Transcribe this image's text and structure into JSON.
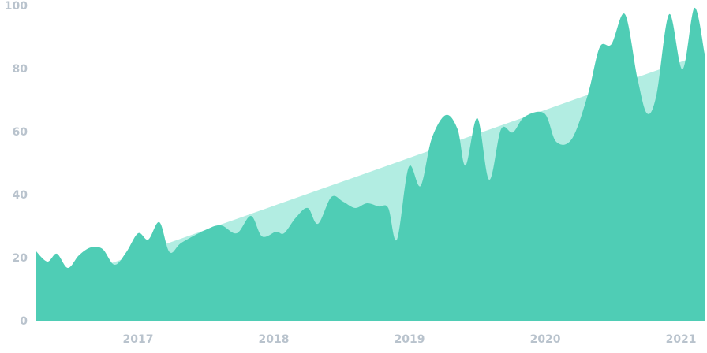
{
  "chart_data": {
    "type": "area",
    "xlim": [
      2016.244,
      2021.174
    ],
    "xticks": [
      2017,
      2018,
      2019,
      2020,
      2021
    ],
    "ylim": [
      0,
      100
    ],
    "yticks": [
      0,
      20,
      40,
      60,
      80,
      100
    ],
    "grid": false,
    "series": [
      {
        "color": "#b2ede2",
        "x": [
          2016.244,
          2021.174
        ],
        "values": [
          10,
          85
        ]
      },
      {
        "color": "#4fcdb5",
        "x": [
          2016.244,
          2016.331,
          2016.401,
          2016.482,
          2016.564,
          2016.651,
          2016.738,
          2016.826,
          2016.913,
          2017.0,
          2017.075,
          2017.157,
          2017.232,
          2017.32,
          2017.494,
          2017.61,
          2017.727,
          2017.831,
          2017.913,
          2018.017,
          2018.075,
          2018.163,
          2018.25,
          2018.325,
          2018.424,
          2018.511,
          2018.599,
          2018.686,
          2018.773,
          2018.843,
          2018.907,
          2018.994,
          2019.081,
          2019.163,
          2019.267,
          2019.354,
          2019.413,
          2019.5,
          2019.587,
          2019.674,
          2019.761,
          2019.849,
          2019.994,
          2020.081,
          2020.197,
          2020.314,
          2020.401,
          2020.488,
          2020.587,
          2020.68,
          2020.75,
          2020.82,
          2020.913,
          2021.011,
          2021.099,
          2021.174
        ],
        "values": [
          22.5,
          19,
          21.5,
          17,
          21,
          23.5,
          23,
          18,
          22,
          28,
          26,
          31.5,
          22,
          25,
          29,
          30.5,
          28,
          33.5,
          27,
          28.5,
          28,
          33,
          36,
          31,
          39.5,
          38,
          36,
          37.5,
          36.5,
          36,
          26,
          49,
          43,
          58,
          65.5,
          61,
          49.5,
          64.5,
          45,
          61,
          60,
          65,
          66,
          57,
          58,
          72,
          87,
          88,
          97.5,
          77,
          66,
          72,
          97.5,
          80,
          99.5,
          85
        ]
      }
    ]
  }
}
